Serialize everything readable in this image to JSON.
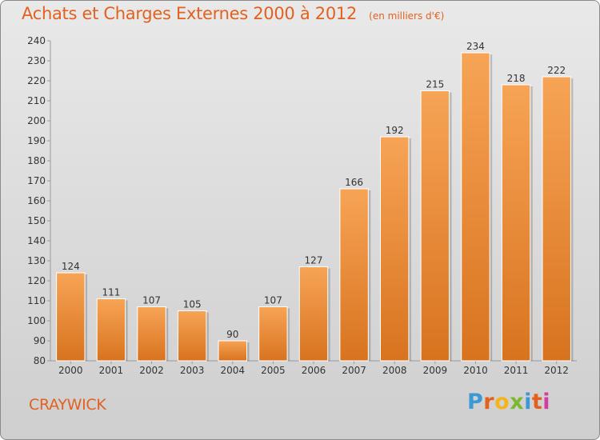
{
  "title": "Achats et Charges Externes 2000 à 2012",
  "unit": "(en milliers d'€)",
  "place": "CRAYWICK",
  "logo": "Proxiti",
  "chart_data": {
    "type": "bar",
    "title": "Achats et Charges Externes 2000 à 2012",
    "subtitle": "(en milliers d'€)",
    "categories": [
      "2000",
      "2001",
      "2002",
      "2003",
      "2004",
      "2005",
      "2006",
      "2007",
      "2008",
      "2009",
      "2010",
      "2011",
      "2012"
    ],
    "values": [
      124,
      111,
      107,
      105,
      90,
      107,
      127,
      166,
      192,
      215,
      234,
      218,
      222
    ],
    "ylim": [
      80,
      240
    ],
    "yticks": [
      80,
      90,
      100,
      110,
      120,
      130,
      140,
      150,
      160,
      170,
      180,
      190,
      200,
      210,
      220,
      230,
      240
    ],
    "grid": false,
    "colors": {
      "bar_light": "#f7a456",
      "bar_dark": "#d8731e",
      "text": "#e2611f"
    }
  }
}
